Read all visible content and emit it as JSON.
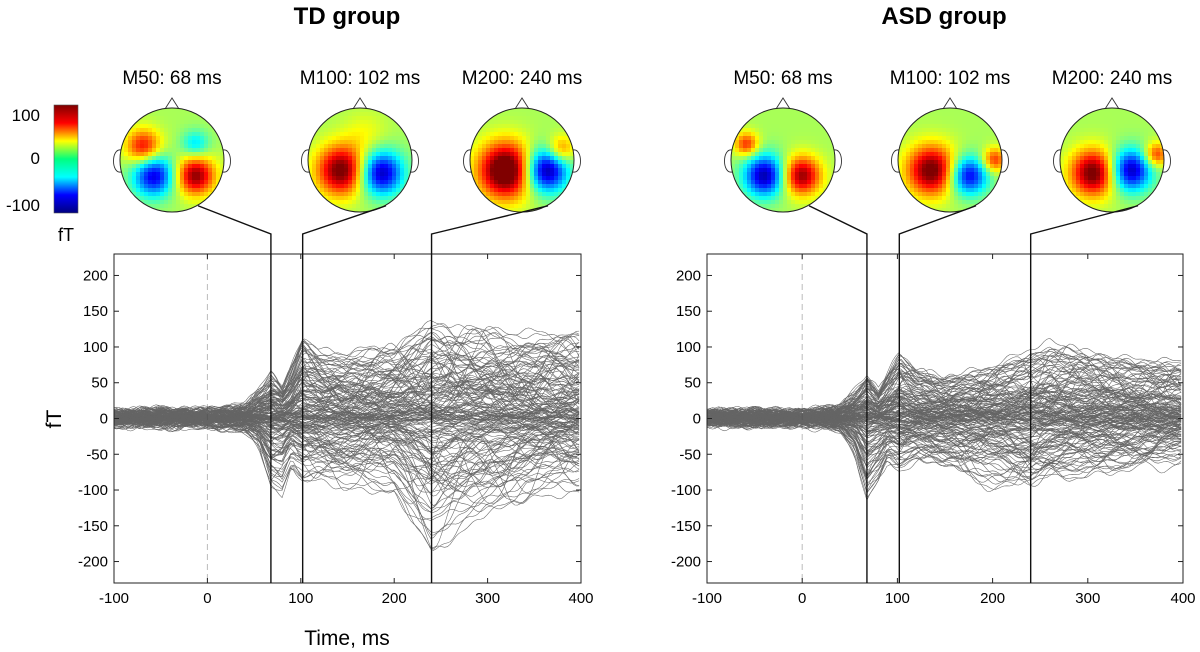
{
  "chart_data": [
    {
      "type": "line",
      "title": "TD group",
      "xlabel": "Time, ms",
      "ylabel": "fT",
      "xlim": [
        -100,
        400
      ],
      "ylim": [
        -230,
        230
      ],
      "x_ticks": [
        -100,
        0,
        100,
        200,
        300,
        400
      ],
      "y_ticks": [
        -200,
        -150,
        -100,
        -50,
        0,
        50,
        100,
        150,
        200
      ],
      "stimulus_onset_ms": 0,
      "series_description": "Butterfly plot of all MEG channels (~200 traces)",
      "envelope": {
        "x": [
          -100,
          -50,
          0,
          40,
          55,
          68,
          80,
          90,
          102,
          120,
          150,
          200,
          240,
          260,
          300,
          350,
          400
        ],
        "upper": [
          12,
          15,
          14,
          22,
          45,
          65,
          45,
          75,
          120,
          100,
          95,
          105,
          140,
          135,
          130,
          122,
          120
        ],
        "lower": [
          -12,
          -15,
          -14,
          -20,
          -40,
          -100,
          -110,
          -70,
          -90,
          -90,
          -100,
          -110,
          -190,
          -175,
          -135,
          -115,
          -105
        ]
      },
      "components": [
        {
          "label": "M50: 68 ms",
          "latency_ms": 68
        },
        {
          "label": "M100: 102 ms",
          "latency_ms": 102
        },
        {
          "label": "M200: 240 ms",
          "latency_ms": 240
        }
      ]
    },
    {
      "type": "line",
      "title": "ASD group",
      "xlabel": "",
      "ylabel": "",
      "xlim": [
        -100,
        400
      ],
      "ylim": [
        -230,
        230
      ],
      "x_ticks": [
        -100,
        0,
        100,
        200,
        300,
        400
      ],
      "y_ticks": [
        -200,
        -150,
        -100,
        -50,
        0,
        50,
        100,
        150,
        200
      ],
      "stimulus_onset_ms": 0,
      "series_description": "Butterfly plot of all MEG channels (~200 traces)",
      "envelope": {
        "x": [
          -100,
          -50,
          0,
          40,
          55,
          68,
          80,
          90,
          102,
          120,
          150,
          200,
          240,
          260,
          300,
          350,
          400
        ],
        "upper": [
          12,
          14,
          12,
          20,
          40,
          65,
          40,
          65,
          95,
          70,
          60,
          75,
          100,
          110,
          95,
          85,
          82
        ],
        "lower": [
          -12,
          -14,
          -12,
          -20,
          -50,
          -120,
          -95,
          -65,
          -80,
          -70,
          -80,
          -100,
          -115,
          -95,
          -85,
          -75,
          -70
        ]
      },
      "components": [
        {
          "label": "M50: 68 ms",
          "latency_ms": 68
        },
        {
          "label": "M100: 102 ms",
          "latency_ms": 102
        },
        {
          "label": "M200: 240 ms",
          "latency_ms": 240
        }
      ]
    }
  ],
  "colorbar": {
    "max_label": "100",
    "mid_label": "0",
    "min_label": "-100",
    "unit": "fT",
    "colormap": "jet",
    "colors": [
      "#7f0000",
      "#ff0000",
      "#ffff00",
      "#00ff7f",
      "#00ffff",
      "#0000ff",
      "#00007f"
    ]
  },
  "topomaps": [
    {
      "blobs": [
        {
          "dx": -0.55,
          "dy": -0.25,
          "r": 0.32,
          "v": 0.7
        },
        {
          "dx": 0.45,
          "dy": -0.3,
          "r": 0.25,
          "v": -0.4
        },
        {
          "dx": -0.35,
          "dy": 0.3,
          "r": 0.38,
          "v": -0.9
        },
        {
          "dx": 0.45,
          "dy": 0.3,
          "r": 0.35,
          "v": 0.9
        }
      ]
    },
    {
      "blobs": [
        {
          "dx": -0.35,
          "dy": 0.2,
          "r": 0.45,
          "v": 1.0
        },
        {
          "dx": 0.4,
          "dy": 0.25,
          "r": 0.4,
          "v": -1.0
        },
        {
          "dx": 0.1,
          "dy": -0.5,
          "r": 0.4,
          "v": 0.15
        }
      ]
    },
    {
      "blobs": [
        {
          "dx": -0.3,
          "dy": 0.2,
          "r": 0.5,
          "v": 1.2
        },
        {
          "dx": 0.45,
          "dy": 0.2,
          "r": 0.4,
          "v": -1.1
        },
        {
          "dx": 0.75,
          "dy": -0.2,
          "r": 0.25,
          "v": 0.5
        }
      ]
    },
    {
      "blobs": [
        {
          "dx": -0.35,
          "dy": 0.3,
          "r": 0.38,
          "v": -1.0
        },
        {
          "dx": 0.35,
          "dy": 0.3,
          "r": 0.35,
          "v": 0.9
        },
        {
          "dx": -0.7,
          "dy": -0.3,
          "r": 0.22,
          "v": 0.6
        }
      ]
    },
    {
      "blobs": [
        {
          "dx": -0.35,
          "dy": 0.2,
          "r": 0.45,
          "v": 1.0
        },
        {
          "dx": 0.35,
          "dy": 0.3,
          "r": 0.35,
          "v": -0.9
        },
        {
          "dx": 0.85,
          "dy": 0.0,
          "r": 0.22,
          "v": 0.6
        }
      ]
    },
    {
      "blobs": [
        {
          "dx": -0.35,
          "dy": 0.25,
          "r": 0.42,
          "v": 1.0
        },
        {
          "dx": 0.35,
          "dy": 0.2,
          "r": 0.38,
          "v": -1.0
        },
        {
          "dx": 0.85,
          "dy": -0.1,
          "r": 0.22,
          "v": 0.6
        }
      ]
    }
  ],
  "colors": {
    "trace": "#4a4a4a",
    "axis": "#222222",
    "onset": "#bbbbbb"
  }
}
